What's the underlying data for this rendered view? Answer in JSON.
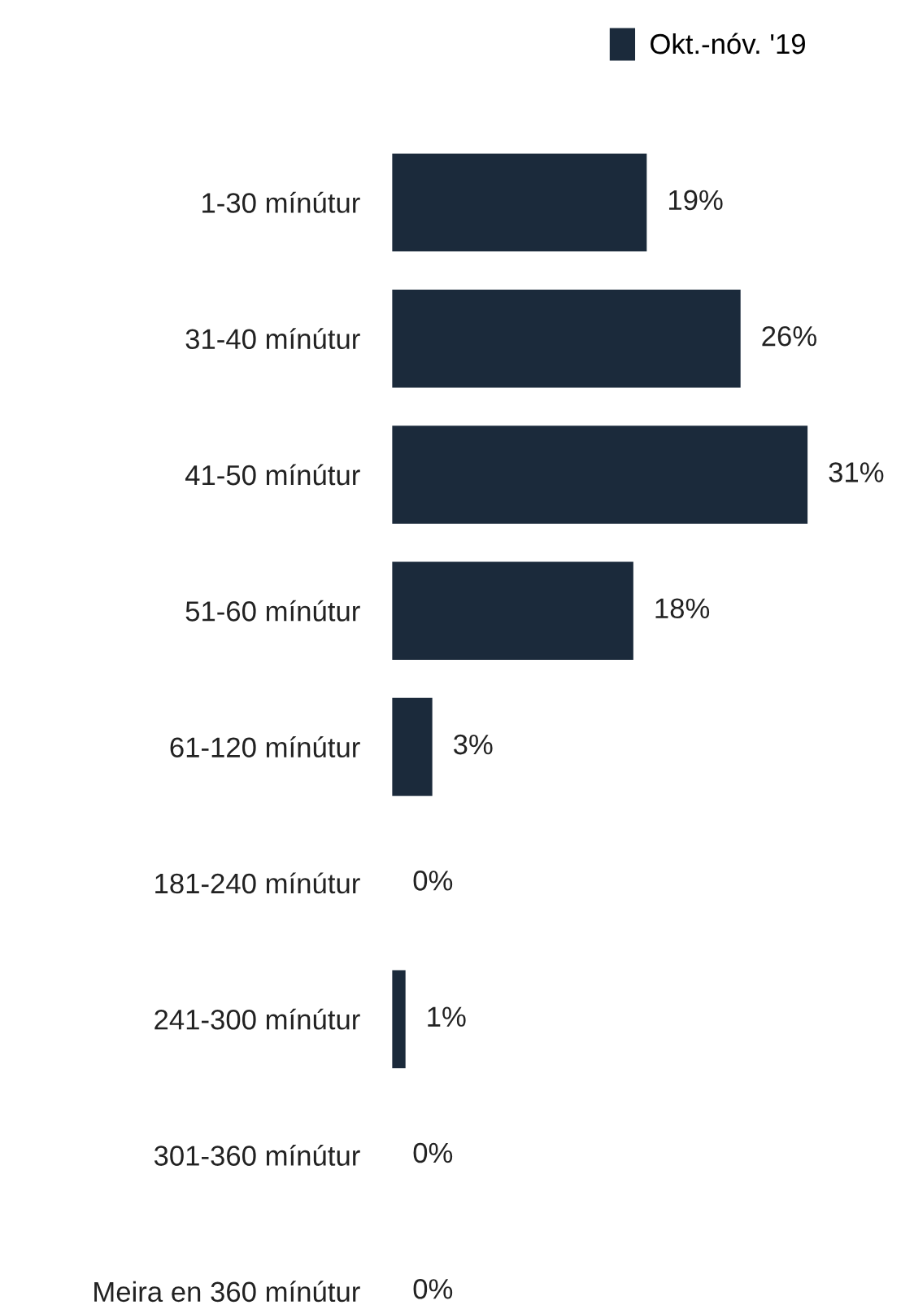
{
  "chart_data": {
    "type": "bar",
    "orientation": "horizontal",
    "categories": [
      "1-30 mínútur",
      "31-40 mínútur",
      "41-50 mínútur",
      "51-60 mínútur",
      "61-120 mínútur",
      "181-240 mínútur",
      "241-300 mínútur",
      "301-360 mínútur",
      "Meira en 360 mínútur"
    ],
    "series": [
      {
        "name": "Okt.-nóv. '19",
        "color": "#1b2a3b",
        "values": [
          19,
          26,
          31,
          18,
          3,
          0,
          1,
          0,
          0
        ],
        "value_labels": [
          "19%",
          "26%",
          "31%",
          "18%",
          "3%",
          "0%",
          "1%",
          "0%",
          "0%"
        ]
      }
    ],
    "legend": "top right",
    "grid": false
  }
}
